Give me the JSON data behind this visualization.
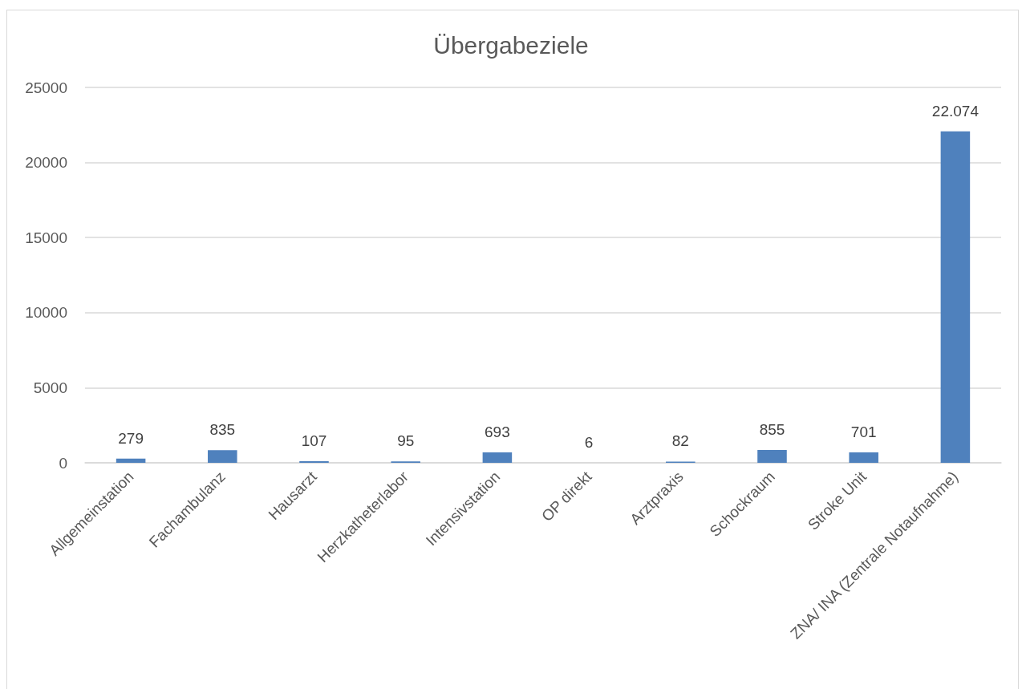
{
  "chart_data": {
    "type": "bar",
    "title": "Übergabeziele",
    "categories": [
      "Allgemeinstation",
      "Fachambulanz",
      "Hausarzt",
      "Herzkatheterlabor",
      "Intensivstation",
      "OP direkt",
      "Arztpraxis",
      "Schockraum",
      "Stroke Unit",
      "ZNA/ INA (Zentrale Notaufnahme)"
    ],
    "values": [
      279,
      835,
      107,
      95,
      693,
      6,
      82,
      855,
      701,
      22074
    ],
    "value_labels": [
      "279",
      "835",
      "107",
      "95",
      "693",
      "6",
      "82",
      "855",
      "701",
      "22.074"
    ],
    "color": "#4f81bd",
    "ylim": [
      0,
      25000
    ],
    "yticks": [
      0,
      5000,
      10000,
      15000,
      20000,
      25000
    ],
    "grid": "y"
  }
}
